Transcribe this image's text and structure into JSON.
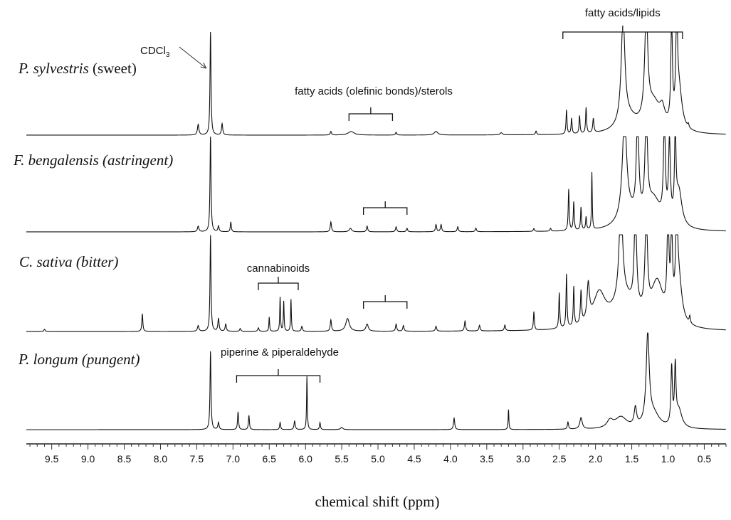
{
  "chart_data": {
    "type": "line",
    "title": "",
    "xlabel": "chemical shift (ppm)",
    "ylabel": "",
    "xlim": [
      9.85,
      0.2
    ],
    "x_reversed": true,
    "grid": false,
    "x_ticks": [
      9.5,
      9.0,
      8.5,
      8.0,
      7.5,
      7.0,
      6.5,
      6.0,
      5.5,
      5.0,
      4.5,
      4.0,
      3.5,
      3.0,
      2.5,
      2.0,
      1.5,
      1.0,
      0.5
    ],
    "series": [
      {
        "name": "P. sylvestris",
        "label_italic": "P. sylvestris",
        "label_suffix": " (sweet)",
        "peaks": [
          {
            "x": 7.48,
            "h": 15,
            "w": 0.012
          },
          {
            "x": 7.31,
            "h": 148,
            "w": 0.008
          },
          {
            "x": 7.15,
            "h": 16,
            "w": 0.01
          },
          {
            "x": 5.65,
            "h": 5,
            "w": 0.01
          },
          {
            "x": 5.37,
            "h": 5,
            "w": 0.05
          },
          {
            "x": 4.75,
            "h": 4,
            "w": 0.01
          },
          {
            "x": 4.2,
            "h": 5,
            "w": 0.03
          },
          {
            "x": 3.3,
            "h": 3,
            "w": 0.02
          },
          {
            "x": 2.82,
            "h": 5,
            "w": 0.01
          },
          {
            "x": 2.4,
            "h": 34,
            "w": 0.008
          },
          {
            "x": 2.33,
            "h": 22,
            "w": 0.008
          },
          {
            "x": 2.22,
            "h": 25,
            "w": 0.008
          },
          {
            "x": 2.13,
            "h": 36,
            "w": 0.008
          },
          {
            "x": 2.03,
            "h": 20,
            "w": 0.01
          },
          {
            "x": 1.62,
            "h": 150,
            "w": 0.03
          },
          {
            "x": 1.55,
            "h": 20,
            "w": 0.15
          },
          {
            "x": 1.3,
            "h": 150,
            "w": 0.025
          },
          {
            "x": 1.2,
            "h": 40,
            "w": 0.12
          },
          {
            "x": 1.08,
            "h": 20,
            "w": 0.04
          },
          {
            "x": 0.95,
            "h": 150,
            "w": 0.012
          },
          {
            "x": 0.88,
            "h": 150,
            "w": 0.012
          },
          {
            "x": 0.85,
            "h": 60,
            "w": 0.05
          },
          {
            "x": 0.72,
            "h": 5,
            "w": 0.01
          }
        ]
      },
      {
        "name": "F. bengalensis",
        "label_italic": "F. bengalensis (astringent)",
        "label_suffix": "",
        "peaks": [
          {
            "x": 7.48,
            "h": 8,
            "w": 0.012
          },
          {
            "x": 7.31,
            "h": 138,
            "w": 0.008
          },
          {
            "x": 7.2,
            "h": 8,
            "w": 0.01
          },
          {
            "x": 7.03,
            "h": 14,
            "w": 0.008
          },
          {
            "x": 5.65,
            "h": 14,
            "w": 0.01
          },
          {
            "x": 5.38,
            "h": 5,
            "w": 0.02
          },
          {
            "x": 5.15,
            "h": 8,
            "w": 0.01
          },
          {
            "x": 4.75,
            "h": 7,
            "w": 0.01
          },
          {
            "x": 4.6,
            "h": 5,
            "w": 0.01
          },
          {
            "x": 4.2,
            "h": 10,
            "w": 0.01
          },
          {
            "x": 4.13,
            "h": 10,
            "w": 0.01
          },
          {
            "x": 3.9,
            "h": 7,
            "w": 0.01
          },
          {
            "x": 3.65,
            "h": 5,
            "w": 0.01
          },
          {
            "x": 2.85,
            "h": 4,
            "w": 0.01
          },
          {
            "x": 2.62,
            "h": 4,
            "w": 0.01
          },
          {
            "x": 2.37,
            "h": 58,
            "w": 0.008
          },
          {
            "x": 2.3,
            "h": 40,
            "w": 0.008
          },
          {
            "x": 2.2,
            "h": 32,
            "w": 0.008
          },
          {
            "x": 2.13,
            "h": 18,
            "w": 0.008
          },
          {
            "x": 2.05,
            "h": 80,
            "w": 0.006
          },
          {
            "x": 1.6,
            "h": 140,
            "w": 0.035
          },
          {
            "x": 1.55,
            "h": 20,
            "w": 0.15
          },
          {
            "x": 1.42,
            "h": 140,
            "w": 0.02
          },
          {
            "x": 1.3,
            "h": 140,
            "w": 0.02
          },
          {
            "x": 1.2,
            "h": 40,
            "w": 0.12
          },
          {
            "x": 1.05,
            "h": 140,
            "w": 0.015
          },
          {
            "x": 0.98,
            "h": 110,
            "w": 0.015
          },
          {
            "x": 0.9,
            "h": 120,
            "w": 0.012
          },
          {
            "x": 0.85,
            "h": 50,
            "w": 0.05
          }
        ]
      },
      {
        "name": "C. sativa",
        "label_italic": "C. sativa (bitter)",
        "label_suffix": "",
        "peaks": [
          {
            "x": 9.6,
            "h": 3,
            "w": 0.01
          },
          {
            "x": 8.25,
            "h": 25,
            "w": 0.008
          },
          {
            "x": 7.48,
            "h": 8,
            "w": 0.012
          },
          {
            "x": 7.31,
            "h": 135,
            "w": 0.008
          },
          {
            "x": 7.2,
            "h": 18,
            "w": 0.01
          },
          {
            "x": 7.1,
            "h": 10,
            "w": 0.01
          },
          {
            "x": 6.9,
            "h": 4,
            "w": 0.01
          },
          {
            "x": 6.65,
            "h": 5,
            "w": 0.01
          },
          {
            "x": 6.5,
            "h": 20,
            "w": 0.006
          },
          {
            "x": 6.35,
            "h": 48,
            "w": 0.006
          },
          {
            "x": 6.3,
            "h": 42,
            "w": 0.006
          },
          {
            "x": 6.2,
            "h": 45,
            "w": 0.006
          },
          {
            "x": 6.05,
            "h": 7,
            "w": 0.01
          },
          {
            "x": 5.65,
            "h": 16,
            "w": 0.01
          },
          {
            "x": 5.42,
            "h": 18,
            "w": 0.03
          },
          {
            "x": 5.15,
            "h": 10,
            "w": 0.02
          },
          {
            "x": 4.75,
            "h": 10,
            "w": 0.01
          },
          {
            "x": 4.65,
            "h": 8,
            "w": 0.01
          },
          {
            "x": 4.2,
            "h": 7,
            "w": 0.01
          },
          {
            "x": 3.8,
            "h": 14,
            "w": 0.01
          },
          {
            "x": 3.6,
            "h": 8,
            "w": 0.01
          },
          {
            "x": 3.25,
            "h": 8,
            "w": 0.01
          },
          {
            "x": 2.85,
            "h": 26,
            "w": 0.008
          },
          {
            "x": 2.5,
            "h": 50,
            "w": 0.008
          },
          {
            "x": 2.4,
            "h": 75,
            "w": 0.008
          },
          {
            "x": 2.3,
            "h": 55,
            "w": 0.008
          },
          {
            "x": 2.2,
            "h": 45,
            "w": 0.01
          },
          {
            "x": 2.1,
            "h": 50,
            "w": 0.02
          },
          {
            "x": 1.95,
            "h": 45,
            "w": 0.1
          },
          {
            "x": 1.65,
            "h": 135,
            "w": 0.03
          },
          {
            "x": 1.6,
            "h": 40,
            "w": 0.2
          },
          {
            "x": 1.45,
            "h": 135,
            "w": 0.02
          },
          {
            "x": 1.3,
            "h": 135,
            "w": 0.02
          },
          {
            "x": 1.15,
            "h": 60,
            "w": 0.1
          },
          {
            "x": 1.0,
            "h": 135,
            "w": 0.015
          },
          {
            "x": 0.95,
            "h": 110,
            "w": 0.015
          },
          {
            "x": 0.88,
            "h": 135,
            "w": 0.015
          },
          {
            "x": 0.85,
            "h": 60,
            "w": 0.05
          },
          {
            "x": 0.7,
            "h": 10,
            "w": 0.01
          }
        ]
      },
      {
        "name": "P. longum",
        "label_italic": "P. longum (pungent)",
        "label_suffix": "",
        "peaks": [
          {
            "x": 7.31,
            "h": 110,
            "w": 0.008
          },
          {
            "x": 7.2,
            "h": 10,
            "w": 0.01
          },
          {
            "x": 6.93,
            "h": 25,
            "w": 0.008
          },
          {
            "x": 6.78,
            "h": 20,
            "w": 0.008
          },
          {
            "x": 6.35,
            "h": 10,
            "w": 0.008
          },
          {
            "x": 6.15,
            "h": 12,
            "w": 0.01
          },
          {
            "x": 5.98,
            "h": 75,
            "w": 0.006
          },
          {
            "x": 5.8,
            "h": 10,
            "w": 0.008
          },
          {
            "x": 5.5,
            "h": 3,
            "w": 0.02
          },
          {
            "x": 3.95,
            "h": 16,
            "w": 0.01
          },
          {
            "x": 3.2,
            "h": 28,
            "w": 0.006
          },
          {
            "x": 2.38,
            "h": 10,
            "w": 0.01
          },
          {
            "x": 2.2,
            "h": 16,
            "w": 0.02
          },
          {
            "x": 1.8,
            "h": 10,
            "w": 0.05
          },
          {
            "x": 1.65,
            "h": 16,
            "w": 0.1
          },
          {
            "x": 1.45,
            "h": 25,
            "w": 0.02
          },
          {
            "x": 1.28,
            "h": 125,
            "w": 0.025
          },
          {
            "x": 1.2,
            "h": 20,
            "w": 0.1
          },
          {
            "x": 0.95,
            "h": 80,
            "w": 0.012
          },
          {
            "x": 0.9,
            "h": 80,
            "w": 0.012
          },
          {
            "x": 0.85,
            "h": 25,
            "w": 0.05
          }
        ]
      }
    ],
    "annotations": [
      {
        "text": "CDCl",
        "subscript": "3",
        "x": 7.31,
        "series": 0,
        "kind": "arrow"
      },
      {
        "text": "fatty acids/lipids",
        "x_from": 2.45,
        "x_to": 0.8,
        "series": 0,
        "kind": "bracket"
      },
      {
        "text": "fatty acids (olefinic bonds)/sterols",
        "x_from": 5.4,
        "x_to": 4.8,
        "series": 0,
        "kind": "bracket"
      },
      {
        "text": "",
        "x_from": 5.2,
        "x_to": 4.6,
        "series": 1,
        "kind": "bracket"
      },
      {
        "text": "cannabinoids",
        "x_from": 6.65,
        "x_to": 6.1,
        "series": 2,
        "kind": "bracket"
      },
      {
        "text": "",
        "x_from": 5.2,
        "x_to": 4.6,
        "series": 2,
        "kind": "bracket"
      },
      {
        "text": "piperine & piperaldehyde",
        "x_from": 6.95,
        "x_to": 5.8,
        "series": 3,
        "kind": "bracket"
      }
    ]
  }
}
